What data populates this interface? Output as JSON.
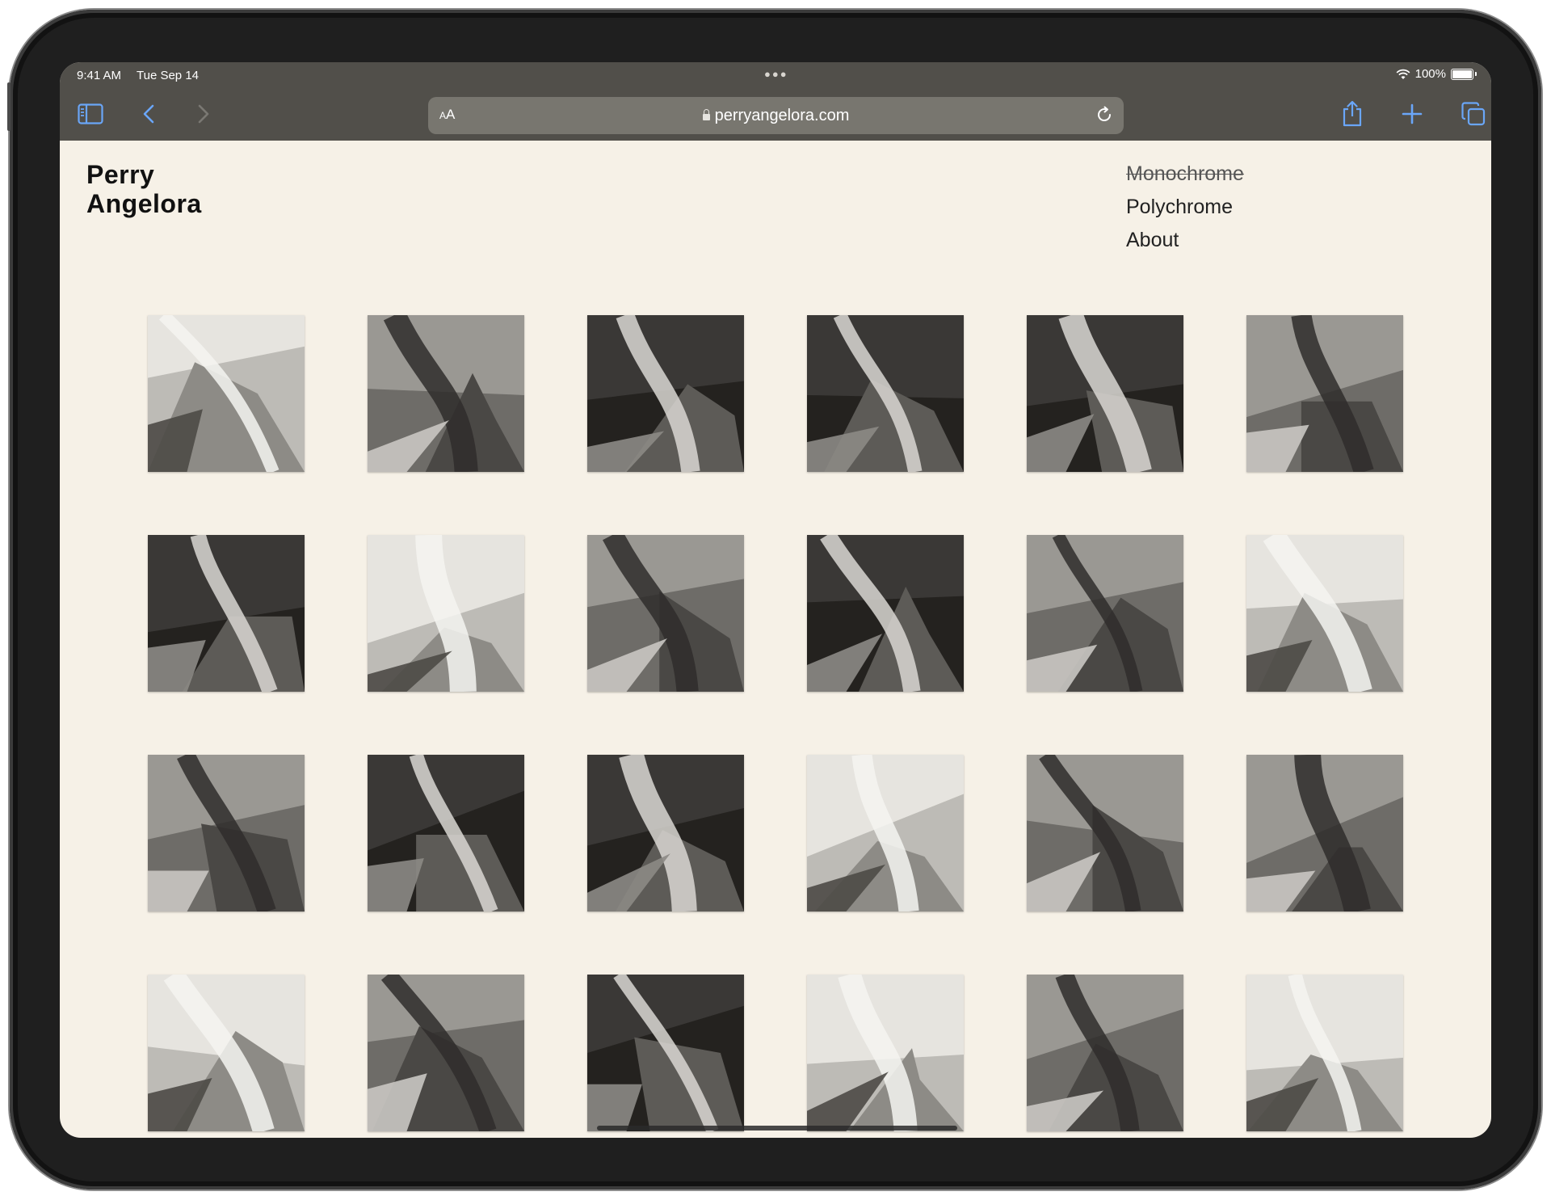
{
  "status": {
    "time": "9:41 AM",
    "date": "Tue Sep 14",
    "battery": "100%"
  },
  "browser": {
    "text_size_label": "AA",
    "url": "perryangelora.com"
  },
  "site": {
    "name_line1": "Perry",
    "name_line2": "Angelora",
    "nav": [
      "Monochrome",
      "Polychrome",
      "About"
    ]
  },
  "gallery": {
    "thumbnails": [
      {
        "name": "artwork-folded-white-sheet",
        "tone": "light"
      },
      {
        "name": "artwork-mountain-branches",
        "tone": "mid"
      },
      {
        "name": "artwork-white-spikes",
        "tone": "dark"
      },
      {
        "name": "artwork-white-column-valley",
        "tone": "dark"
      },
      {
        "name": "artwork-man-in-forest",
        "tone": "dark"
      },
      {
        "name": "artwork-figure-raising-arms",
        "tone": "mid"
      },
      {
        "name": "artwork-fence-sky",
        "tone": "dark"
      },
      {
        "name": "artwork-hillside-panel",
        "tone": "light"
      },
      {
        "name": "artwork-house-forest",
        "tone": "mid"
      },
      {
        "name": "artwork-road-landscape",
        "tone": "dark"
      },
      {
        "name": "artwork-window-garden",
        "tone": "mid"
      },
      {
        "name": "artwork-folded-slab-sea",
        "tone": "light"
      },
      {
        "name": "artwork-valley-rocks",
        "tone": "mid"
      },
      {
        "name": "artwork-kneeling-figure",
        "tone": "dark"
      },
      {
        "name": "artwork-figure-white-stream",
        "tone": "dark"
      },
      {
        "name": "artwork-collage-scene",
        "tone": "light"
      },
      {
        "name": "artwork-man-arms-raised",
        "tone": "mid"
      },
      {
        "name": "artwork-planter-trees",
        "tone": "mid"
      },
      {
        "name": "artwork-white-ribbon-trees",
        "tone": "light"
      },
      {
        "name": "artwork-cabin-white-form",
        "tone": "mid"
      },
      {
        "name": "artwork-rock-burst",
        "tone": "dark"
      },
      {
        "name": "artwork-tread-form",
        "tone": "light"
      },
      {
        "name": "artwork-spiky-plants",
        "tone": "mid"
      },
      {
        "name": "artwork-smoke-trail",
        "tone": "light"
      }
    ]
  }
}
